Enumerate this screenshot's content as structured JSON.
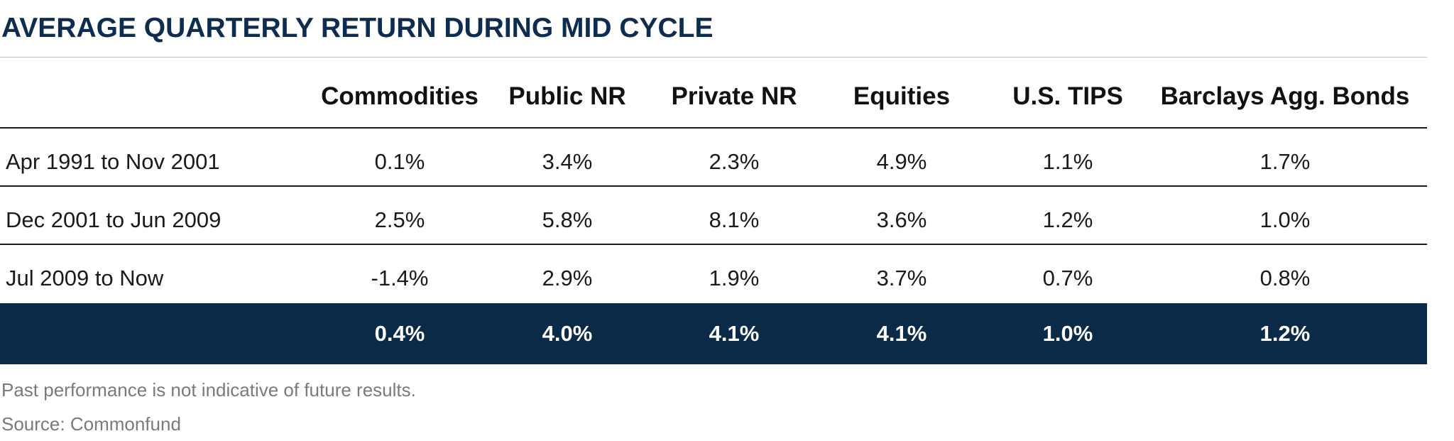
{
  "chart_data": {
    "type": "table",
    "title": "AVERAGE QUARTERLY RETURN DURING MID CYCLE",
    "columns": [
      "Commodities",
      "Public NR",
      "Private NR",
      "Equities",
      "U.S. TIPS",
      "Barclays Agg. Bonds"
    ],
    "rows": [
      {
        "label": "Apr 1991 to Nov 2001",
        "values": [
          "0.1%",
          "3.4%",
          "2.3%",
          "4.9%",
          "1.1%",
          "1.7%"
        ]
      },
      {
        "label": "Dec 2001 to Jun 2009",
        "values": [
          "2.5%",
          "5.8%",
          "8.1%",
          "3.6%",
          "1.2%",
          "1.0%"
        ]
      },
      {
        "label": "Jul 2009 to Now",
        "values": [
          "-1.4%",
          "2.9%",
          "1.9%",
          "3.7%",
          "0.7%",
          "0.8%"
        ]
      }
    ],
    "average": [
      "0.4%",
      "4.0%",
      "4.1%",
      "4.1%",
      "1.0%",
      "1.2%"
    ]
  },
  "footnotes": {
    "disclaimer": "Past performance is not indicative of future results.",
    "source": "Source:  Commonfund"
  },
  "colors": {
    "title": "#0d2c4f",
    "average_band": "#0b2a47",
    "rule": "#1a1a1a"
  }
}
